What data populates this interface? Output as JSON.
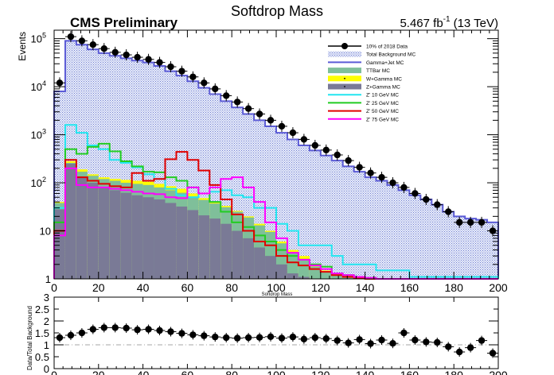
{
  "chart_data": [
    {
      "type": "histogram",
      "title": "Softdrop Mass",
      "experiment_label": "CMS Preliminary",
      "lumi_label": "5.467 fb",
      "lumi_superscript": "-1",
      "energy_label": "(13 TeV)",
      "xlabel": "Softdrop Mass",
      "ylabel": "Events",
      "xlim": [
        0,
        200
      ],
      "ylim": [
        1,
        150000
      ],
      "y_scale": "log",
      "x_ticks": [
        "0",
        "20",
        "40",
        "60",
        "80",
        "100",
        "120",
        "140",
        "160",
        "180",
        "200"
      ],
      "y_ticks": [
        {
          "base": "1",
          "exp": ""
        },
        {
          "base": "10",
          "exp": ""
        },
        {
          "base": "10",
          "exp": "2"
        },
        {
          "base": "10",
          "exp": "3"
        },
        {
          "base": "10",
          "exp": "4"
        },
        {
          "base": "10",
          "exp": "5"
        }
      ],
      "bin_edges": [
        0,
        5,
        10,
        15,
        20,
        25,
        30,
        35,
        40,
        45,
        50,
        55,
        60,
        65,
        70,
        75,
        80,
        85,
        90,
        95,
        100,
        105,
        110,
        115,
        120,
        125,
        130,
        135,
        140,
        145,
        150,
        155,
        160,
        165,
        170,
        175,
        180,
        185,
        190,
        195,
        200
      ],
      "legend_position": "top-right",
      "legend": [
        {
          "label": "10% of 2018 Data",
          "style": "marker",
          "color": "#000000"
        },
        {
          "label": "Total Background MC",
          "style": "hatch-box",
          "color": "#b0b8e8"
        },
        {
          "label": "Gamma+Jet MC",
          "style": "line",
          "color": "#5b5bd6"
        },
        {
          "label": "TTBar MC",
          "style": "box",
          "color": "#7fbf9a"
        },
        {
          "label": "W+Gamma MC",
          "style": "box",
          "color": "#ffff00"
        },
        {
          "label": "Z+Gamma MC",
          "style": "box",
          "color": "#7a7a96"
        },
        {
          "label": "Z' 10 GeV MC",
          "style": "line",
          "color": "#22e6f0"
        },
        {
          "label": "Z' 25 GeV MC",
          "style": "line",
          "color": "#22cc22"
        },
        {
          "label": "Z' 50 GeV MC",
          "style": "line",
          "color": "#e00000"
        },
        {
          "label": "Z' 75 GeV MC",
          "style": "line",
          "color": "#ff00ff"
        }
      ],
      "data_points": [
        12000,
        110000,
        90000,
        75000,
        62000,
        52000,
        46000,
        41000,
        37000,
        32000,
        26000,
        21000,
        16000,
        12000,
        9000,
        6500,
        4800,
        3500,
        2700,
        2000,
        1500,
        1100,
        800,
        600,
        480,
        380,
        290,
        210,
        160,
        130,
        100,
        80,
        60,
        45,
        35,
        25,
        15,
        15,
        15,
        10
      ],
      "series": [
        {
          "name": "Total Background MC",
          "kind": "hatched",
          "color": "#b0b8e8",
          "values": [
            8000,
            90000,
            75000,
            60000,
            50000,
            44000,
            39000,
            35000,
            32000,
            27000,
            21000,
            17000,
            13000,
            9500,
            7000,
            5000,
            3700,
            2700,
            2000,
            1500,
            1100,
            800,
            600,
            470,
            370,
            290,
            220,
            170,
            130,
            110,
            90,
            70,
            55,
            45,
            35,
            25,
            20,
            18,
            17,
            15
          ]
        },
        {
          "name": "Gamma+Jet MC",
          "kind": "step",
          "color": "#5b5bd6",
          "values": [
            8000,
            90000,
            75000,
            60000,
            50000,
            44000,
            39000,
            35000,
            32000,
            27000,
            21000,
            17000,
            13000,
            9500,
            7000,
            5000,
            3700,
            2700,
            2000,
            1500,
            1100,
            800,
            600,
            470,
            370,
            290,
            220,
            170,
            130,
            110,
            90,
            70,
            55,
            45,
            35,
            25,
            20,
            18,
            17,
            15
          ]
        },
        {
          "name": "W+Gamma MC",
          "kind": "stack",
          "color": "#ffff00",
          "values": [
            40,
            280,
            190,
            150,
            130,
            120,
            115,
            110,
            105,
            95,
            85,
            75,
            60,
            48,
            40,
            33,
            26,
            20,
            14,
            10,
            6,
            4,
            3,
            2,
            1.5,
            1.3,
            1.2,
            1.1,
            1.05,
            1,
            1,
            1,
            1,
            1,
            1,
            1,
            1,
            1,
            1,
            1
          ]
        },
        {
          "name": "TTBar MC",
          "kind": "stack",
          "color": "#7fbf9a",
          "values": [
            38,
            260,
            170,
            140,
            120,
            110,
            100,
            95,
            90,
            80,
            70,
            62,
            52,
            44,
            37,
            31,
            25,
            19,
            13,
            9.5,
            5.5,
            3.5,
            2.5,
            1.8,
            1.4,
            1.25,
            1.15,
            1.1,
            1.05,
            1,
            1,
            1,
            1,
            1,
            1,
            1,
            1,
            1,
            1,
            1
          ]
        },
        {
          "name": "Z+Gamma MC",
          "kind": "stack",
          "color": "#7a7a96",
          "values": [
            28,
            250,
            130,
            100,
            80,
            70,
            62,
            55,
            50,
            45,
            38,
            32,
            27,
            21,
            18,
            14,
            10,
            7,
            4.5,
            3,
            2,
            1.3,
            1.1,
            1,
            1,
            1,
            1,
            1,
            1,
            1,
            1,
            1,
            1,
            1,
            1,
            1,
            1,
            1,
            1,
            1
          ]
        },
        {
          "name": "Z' 10 GeV MC",
          "kind": "step",
          "color": "#22e6f0",
          "values": [
            30,
            1600,
            1100,
            600,
            500,
            300,
            260,
            210,
            150,
            120,
            75,
            55,
            50,
            60,
            65,
            70,
            55,
            50,
            30,
            30,
            14,
            10,
            5,
            5,
            5,
            3,
            2,
            2,
            2,
            1.5,
            1.5,
            1.5,
            1.1,
            1.1,
            1.1,
            1.1,
            1.1,
            1.1,
            1.1,
            1.1
          ]
        },
        {
          "name": "Z' 25 GeV MC",
          "kind": "step",
          "color": "#22cc22",
          "values": [
            15,
            500,
            400,
            560,
            650,
            450,
            280,
            220,
            170,
            165,
            130,
            110,
            80,
            60,
            40,
            25,
            15,
            12,
            8,
            6,
            4,
            3,
            2.5,
            2,
            1.8,
            1.3,
            1.2,
            1.1,
            1.05,
            1,
            1,
            1,
            1,
            1,
            1,
            1,
            1,
            1,
            1,
            1
          ]
        },
        {
          "name": "Z' 50 GeV MC",
          "kind": "step",
          "color": "#e00000",
          "values": [
            10,
            300,
            130,
            110,
            95,
            85,
            80,
            160,
            110,
            120,
            310,
            440,
            300,
            180,
            90,
            45,
            22,
            10,
            6,
            5,
            3,
            2.2,
            1.9,
            1.6,
            1.4,
            1.2,
            1.1,
            1.05,
            1,
            1,
            1,
            1,
            1,
            1,
            1,
            1,
            1,
            1,
            1,
            1
          ]
        },
        {
          "name": "Z' 75 GeV MC",
          "kind": "step",
          "color": "#ff00ff",
          "values": [
            8,
            200,
            90,
            80,
            80,
            75,
            70,
            65,
            60,
            58,
            50,
            48,
            80,
            60,
            80,
            120,
            130,
            80,
            40,
            15,
            7,
            3.5,
            2.5,
            1.9,
            1.6,
            1.3,
            1.2,
            1.1,
            1.05,
            1,
            1,
            1,
            1,
            1,
            1,
            1,
            1,
            1,
            1,
            1
          ]
        }
      ]
    },
    {
      "type": "scatter",
      "xlabel": "",
      "ylabel": "Data/Total Background",
      "xlim": [
        0,
        200
      ],
      "ylim": [
        0,
        3
      ],
      "x_ticks": [
        "0",
        "20",
        "40",
        "60",
        "80",
        "100",
        "120",
        "140",
        "160",
        "180",
        "200"
      ],
      "y_ticks": [
        "0",
        "0.5",
        "1",
        "1.5",
        "2",
        "2.5",
        "3"
      ],
      "reference_line": 1,
      "x": [
        2.5,
        7.5,
        12.5,
        17.5,
        22.5,
        27.5,
        32.5,
        37.5,
        42.5,
        47.5,
        52.5,
        57.5,
        62.5,
        67.5,
        72.5,
        77.5,
        82.5,
        87.5,
        92.5,
        97.5,
        102.5,
        107.5,
        112.5,
        117.5,
        122.5,
        127.5,
        132.5,
        137.5,
        142.5,
        147.5,
        152.5,
        157.5,
        162.5,
        167.5,
        172.5,
        177.5,
        182.5,
        187.5,
        192.5,
        197.5
      ],
      "values": [
        1.3,
        1.4,
        1.5,
        1.65,
        1.72,
        1.72,
        1.7,
        1.63,
        1.65,
        1.6,
        1.55,
        1.48,
        1.42,
        1.38,
        1.33,
        1.3,
        1.28,
        1.3,
        1.31,
        1.34,
        1.28,
        1.33,
        1.24,
        1.3,
        1.26,
        1.18,
        1.08,
        1.22,
        1.05,
        1.2,
        1.06,
        1.5,
        1.2,
        1.12,
        1.1,
        0.92,
        0.7,
        0.88,
        1.18,
        0.65
      ]
    }
  ]
}
